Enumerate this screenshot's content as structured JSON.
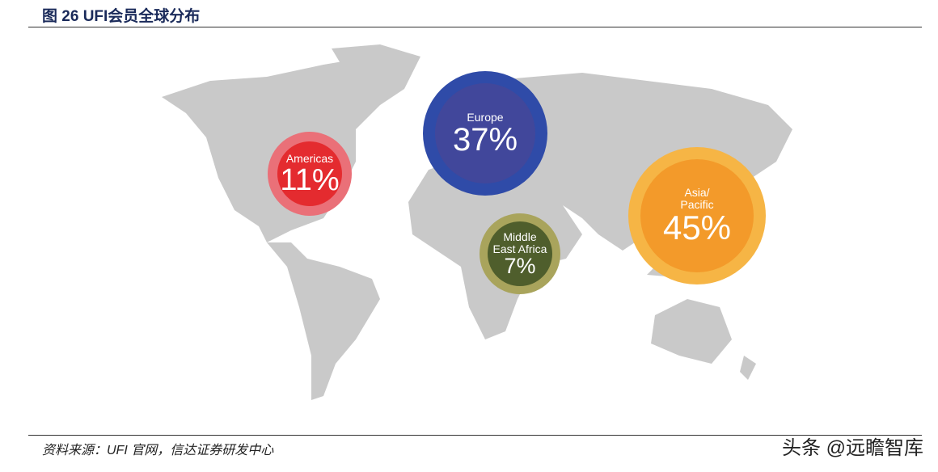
{
  "chart_data": {
    "type": "bubble_map",
    "title": "图 26 UFI会员全球分布",
    "source": "资料来源：UFI 官网，信达证券研发中心",
    "watermark": "头条 @远瞻智库",
    "categories": [
      "Americas",
      "Europe",
      "Middle East Africa",
      "Asia/ Pacific"
    ],
    "values": [
      11,
      37,
      7,
      45
    ],
    "value_labels": [
      "11%",
      "37%",
      "7%",
      "45%"
    ],
    "colors": [
      "#e42b2f",
      "#41479b",
      "#4f5e2c",
      "#f39a2a"
    ],
    "ring_colors": [
      "#ea7078",
      "#2f4ba8",
      "#a9a45c",
      "#f6b545"
    ]
  }
}
